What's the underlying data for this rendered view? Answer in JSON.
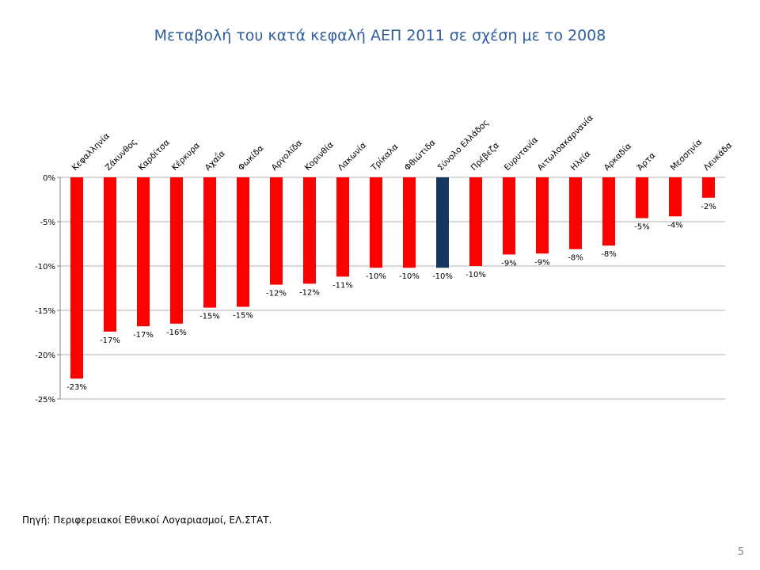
{
  "slide": {
    "title": "Μεταβολή του κατά κεφαλή ΑΕΠ 2011 σε σχέση με το 2008",
    "source": "Πηγή: Περιφερειακοί Εθνικοί Λογαριασμοί, ΕΛ.ΣΤΑΤ.",
    "page_number": "5"
  },
  "chart_data": {
    "type": "bar",
    "title": "",
    "xlabel": "",
    "ylabel": "",
    "categories": [
      "Κεφαλληνία",
      "Ζάκυνθος",
      "Καρδίτσα",
      "Κέρκυρα",
      "Αχαΐα",
      "Φωκίδα",
      "Αργολίδα",
      "Κορινθία",
      "Λακωνία",
      "Τρίκαλα",
      "Φθιώτιδα",
      "Σύνολο Ελλάδος",
      "Πρέβεζα",
      "Ευρυτανία",
      "Αιτωλοακαρνανία",
      "Ηλεία",
      "Αρκαδία",
      "Άρτα",
      "Μεσσηνία",
      "Λευκάδα"
    ],
    "values": [
      -22.7,
      -17.4,
      -16.8,
      -16.5,
      -14.7,
      -14.6,
      -12.1,
      -12.0,
      -11.2,
      -10.2,
      -10.2,
      -10.2,
      -10.0,
      -8.7,
      -8.6,
      -8.1,
      -7.7,
      -4.6,
      -4.4,
      -2.3
    ],
    "data_labels": [
      "-23%",
      "-17%",
      "-17%",
      "-16%",
      "-15%",
      "-15%",
      "-12%",
      "-12%",
      "-11%",
      "-10%",
      "-10%",
      "-10%",
      "-10%",
      "-9%",
      "-9%",
      "-8%",
      "-8%",
      "-5%",
      "-4%",
      "-2%"
    ],
    "ylim": [
      -25,
      0
    ],
    "yticks": [
      0,
      -5,
      -10,
      -15,
      -20,
      -25
    ],
    "ytick_labels": [
      "0%",
      "-5%",
      "-10%",
      "-15%",
      "-20%",
      "-25%"
    ],
    "grid": true,
    "legend": "none",
    "colors": {
      "default": "#ff0000",
      "highlight": "#17375e",
      "grid": "#b0b0b0"
    },
    "highlight_category": "Σύνολο Ελλάδος"
  }
}
